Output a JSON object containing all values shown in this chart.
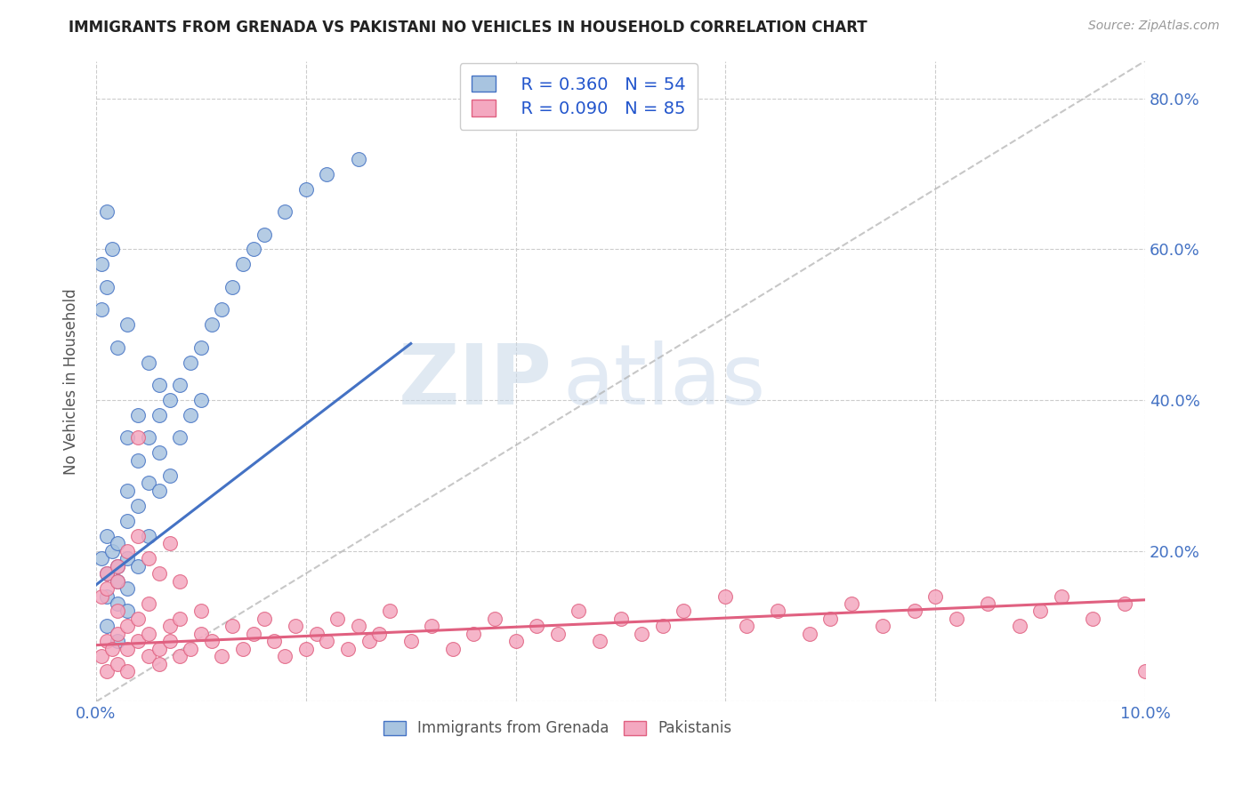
{
  "title": "IMMIGRANTS FROM GRENADA VS PAKISTANI NO VEHICLES IN HOUSEHOLD CORRELATION CHART",
  "source": "Source: ZipAtlas.com",
  "ylabel_label": "No Vehicles in Household",
  "xmin": 0.0,
  "xmax": 0.1,
  "ymin": 0.0,
  "ymax": 0.85,
  "x_ticks": [
    0.0,
    0.02,
    0.04,
    0.06,
    0.08,
    0.1
  ],
  "x_tick_labels": [
    "0.0%",
    "",
    "",
    "",
    "",
    "10.0%"
  ],
  "y_tick_labels_right": [
    "",
    "20.0%",
    "40.0%",
    "60.0%",
    "80.0%"
  ],
  "y_ticks_right": [
    0.0,
    0.2,
    0.4,
    0.6,
    0.8
  ],
  "legend_R1": "R = 0.360",
  "legend_N1": "N = 54",
  "legend_R2": "R = 0.090",
  "legend_N2": "N = 85",
  "color_grenada": "#a8c4e0",
  "color_pakistani": "#f4a8c0",
  "color_line1": "#4472c4",
  "color_line2": "#e06080",
  "color_trendline_dashed": "#b0b0b0",
  "watermark_zip": "ZIP",
  "watermark_atlas": "atlas",
  "title_color": "#222222",
  "axis_label_color": "#4472c4",
  "grenada_scatter_x": [
    0.0005,
    0.001,
    0.001,
    0.001,
    0.001,
    0.0015,
    0.002,
    0.002,
    0.002,
    0.002,
    0.002,
    0.003,
    0.003,
    0.003,
    0.003,
    0.003,
    0.004,
    0.004,
    0.004,
    0.005,
    0.005,
    0.005,
    0.006,
    0.006,
    0.006,
    0.007,
    0.007,
    0.008,
    0.008,
    0.009,
    0.009,
    0.01,
    0.01,
    0.011,
    0.012,
    0.013,
    0.014,
    0.015,
    0.016,
    0.018,
    0.02,
    0.022,
    0.025,
    0.0005,
    0.0005,
    0.001,
    0.001,
    0.0015,
    0.002,
    0.003,
    0.003,
    0.004,
    0.005,
    0.006
  ],
  "grenada_scatter_y": [
    0.19,
    0.17,
    0.14,
    0.22,
    0.1,
    0.2,
    0.16,
    0.13,
    0.18,
    0.21,
    0.08,
    0.24,
    0.19,
    0.15,
    0.28,
    0.12,
    0.32,
    0.26,
    0.18,
    0.35,
    0.22,
    0.29,
    0.38,
    0.28,
    0.33,
    0.4,
    0.3,
    0.42,
    0.35,
    0.45,
    0.38,
    0.47,
    0.4,
    0.5,
    0.52,
    0.55,
    0.58,
    0.6,
    0.62,
    0.65,
    0.68,
    0.7,
    0.72,
    0.52,
    0.58,
    0.55,
    0.65,
    0.6,
    0.47,
    0.35,
    0.5,
    0.38,
    0.45,
    0.42
  ],
  "pakistani_scatter_x": [
    0.0005,
    0.001,
    0.001,
    0.0015,
    0.002,
    0.002,
    0.002,
    0.003,
    0.003,
    0.003,
    0.004,
    0.004,
    0.005,
    0.005,
    0.005,
    0.006,
    0.006,
    0.007,
    0.007,
    0.008,
    0.008,
    0.009,
    0.01,
    0.01,
    0.011,
    0.012,
    0.013,
    0.014,
    0.015,
    0.016,
    0.017,
    0.018,
    0.019,
    0.02,
    0.021,
    0.022,
    0.023,
    0.024,
    0.025,
    0.026,
    0.027,
    0.028,
    0.03,
    0.032,
    0.034,
    0.036,
    0.038,
    0.04,
    0.042,
    0.044,
    0.046,
    0.048,
    0.05,
    0.052,
    0.054,
    0.056,
    0.06,
    0.062,
    0.065,
    0.068,
    0.07,
    0.072,
    0.075,
    0.078,
    0.08,
    0.082,
    0.085,
    0.088,
    0.09,
    0.092,
    0.095,
    0.098,
    0.1,
    0.0005,
    0.001,
    0.001,
    0.002,
    0.002,
    0.003,
    0.004,
    0.004,
    0.005,
    0.006,
    0.007,
    0.008
  ],
  "pakistani_scatter_y": [
    0.06,
    0.08,
    0.04,
    0.07,
    0.09,
    0.05,
    0.12,
    0.07,
    0.1,
    0.04,
    0.08,
    0.11,
    0.06,
    0.09,
    0.13,
    0.07,
    0.05,
    0.1,
    0.08,
    0.06,
    0.11,
    0.07,
    0.09,
    0.12,
    0.08,
    0.06,
    0.1,
    0.07,
    0.09,
    0.11,
    0.08,
    0.06,
    0.1,
    0.07,
    0.09,
    0.08,
    0.11,
    0.07,
    0.1,
    0.08,
    0.09,
    0.12,
    0.08,
    0.1,
    0.07,
    0.09,
    0.11,
    0.08,
    0.1,
    0.09,
    0.12,
    0.08,
    0.11,
    0.09,
    0.1,
    0.12,
    0.14,
    0.1,
    0.12,
    0.09,
    0.11,
    0.13,
    0.1,
    0.12,
    0.14,
    0.11,
    0.13,
    0.1,
    0.12,
    0.14,
    0.11,
    0.13,
    0.04,
    0.14,
    0.17,
    0.15,
    0.16,
    0.18,
    0.2,
    0.22,
    0.35,
    0.19,
    0.17,
    0.21,
    0.16
  ]
}
